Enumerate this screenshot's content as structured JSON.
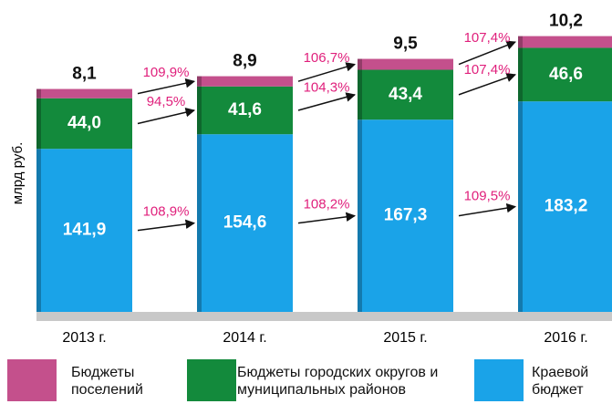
{
  "chart_data": {
    "type": "stacked_bar",
    "y_label": "млрд руб.",
    "categories": [
      "2013 г.",
      "2014 г.",
      "2015 г.",
      "2016 г."
    ],
    "series": [
      {
        "name": "Краевой бюджет",
        "color": "#1aa3e8",
        "values": [
          141.9,
          154.6,
          167.3,
          183.2
        ],
        "value_labels": [
          "141,9",
          "154,6",
          "167,3",
          "183,2"
        ],
        "growth_labels": [
          "108,9%",
          "108,2%",
          "109,5%"
        ]
      },
      {
        "name": "Бюджеты городских округов и муниципальных районов",
        "color": "#138a3c",
        "values": [
          44.0,
          41.6,
          43.4,
          46.6
        ],
        "value_labels": [
          "44,0",
          "41,6",
          "43,4",
          "46,6"
        ],
        "growth_labels": [
          "94,5%",
          "104,3%",
          "107,4%"
        ]
      },
      {
        "name": "Бюджеты поселений",
        "color": "#c4508c",
        "values": [
          8.1,
          8.9,
          9.5,
          10.2
        ],
        "value_labels": [
          "8,1",
          "8,9",
          "9,5",
          "10,2"
        ],
        "growth_labels": [
          "109,9%",
          "106,7%",
          "107,4%"
        ]
      }
    ]
  }
}
